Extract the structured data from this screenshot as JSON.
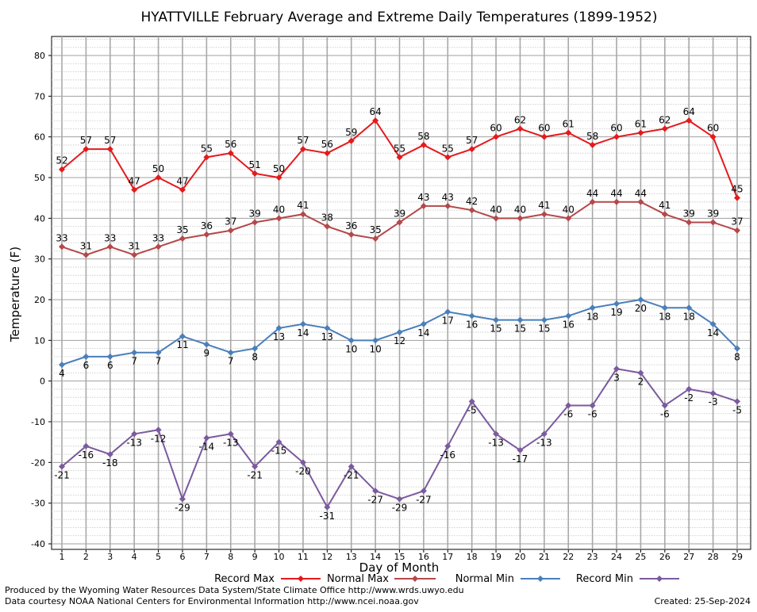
{
  "chart_data": {
    "type": "line",
    "title": "HYATTVILLE February Average and Extreme Daily Temperatures (1899-1952)",
    "xlabel": "Day of Month",
    "ylabel": "Temperature (F)",
    "ylim": [
      -40,
      80
    ],
    "xlim": [
      1,
      29
    ],
    "grid": true,
    "legend_placement": "bottom",
    "x": [
      1,
      2,
      3,
      4,
      5,
      6,
      7,
      8,
      9,
      10,
      11,
      12,
      13,
      14,
      15,
      16,
      17,
      18,
      19,
      20,
      21,
      22,
      23,
      24,
      25,
      26,
      27,
      28,
      29
    ],
    "y_ticks": [
      80,
      70,
      60,
      50,
      40,
      30,
      20,
      10,
      0,
      -10,
      -20,
      -30,
      -40
    ],
    "series": [
      {
        "name": "Record Max",
        "color": "#e41a1c",
        "label_pos": "above",
        "values": [
          52,
          57,
          57,
          47,
          50,
          47,
          55,
          56,
          51,
          50,
          57,
          56,
          59,
          64,
          55,
          58,
          55,
          57,
          60,
          62,
          60,
          61,
          58,
          60,
          61,
          62,
          64,
          60,
          45
        ]
      },
      {
        "name": "Normal Max",
        "color": "#b5484a",
        "label_pos": "above",
        "values": [
          33,
          31,
          33,
          31,
          33,
          35,
          36,
          37,
          39,
          40,
          41,
          38,
          36,
          35,
          39,
          43,
          43,
          42,
          40,
          40,
          41,
          40,
          44,
          44,
          44,
          41,
          39,
          39,
          37
        ]
      },
      {
        "name": "Normal Min",
        "color": "#4a7fba",
        "label_pos": "below",
        "values": [
          4,
          6,
          6,
          7,
          7,
          11,
          9,
          7,
          8,
          13,
          14,
          13,
          10,
          10,
          12,
          14,
          17,
          16,
          15,
          15,
          15,
          16,
          18,
          19,
          20,
          18,
          18,
          14,
          8
        ]
      },
      {
        "name": "Record Min",
        "color": "#7b5a9e",
        "label_pos": "below",
        "values": [
          -21,
          -16,
          -18,
          -13,
          -12,
          -29,
          -14,
          -13,
          -21,
          -15,
          -20,
          -31,
          -21,
          -27,
          -29,
          -27,
          -16,
          -5,
          -13,
          -17,
          -13,
          -6,
          -6,
          3,
          2,
          -6,
          -2,
          -3,
          -5
        ]
      }
    ]
  },
  "footer": {
    "credit_line1": "Produced by the Wyoming Water Resources Data System/State Climate Office http://www.wrds.uwyo.edu",
    "credit_line2": "Data courtesy NOAA National Centers for Environmental Information http://www.ncei.noaa.gov",
    "created": "Created:  25-Sep-2024"
  }
}
